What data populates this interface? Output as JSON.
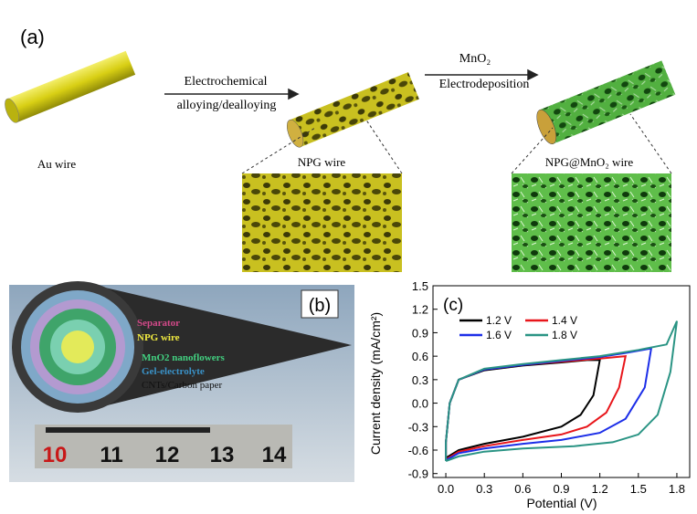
{
  "panel_a": {
    "label": "(a)",
    "arrow_1": [
      "Electrochemical",
      "alloying/dealloying"
    ],
    "arrow_2": [
      "MnO₂",
      "Electrodeposition"
    ],
    "items": [
      "Au wire",
      "NPG wire",
      "NPG@MnO₂ wire"
    ]
  },
  "panel_b": {
    "label": "(b)",
    "layers": [
      "Separator",
      "NPG wire",
      "MnO2 nanoflowers",
      "Gel-electrolyte",
      "CNTs/Carbon paper"
    ],
    "ruler": [
      "10",
      "11",
      "12",
      "13",
      "14"
    ]
  },
  "chart_data": {
    "type": "line",
    "panel_label": "(c)",
    "x_label": "Potential (V)",
    "y_label": "Current density (mA/cm²)",
    "xlim": [
      -0.1,
      1.9
    ],
    "ylim": [
      -0.95,
      1.5
    ],
    "xticks": [
      {
        "value": 0,
        "label": "0.0"
      },
      0.3,
      0.6,
      0.9,
      1.2,
      1.5,
      1.8
    ],
    "yticks": [
      -0.9,
      -0.6,
      -0.3,
      {
        "value": 0,
        "label": "0.0"
      },
      0.3,
      0.6,
      0.9,
      1.2,
      1.5
    ],
    "series": [
      {
        "name": "1.2 V",
        "color": "#000000",
        "x": [
          0,
          0.1,
          0.3,
          0.6,
          0.9,
          1.05,
          1.15,
          1.2,
          1.1,
          0.9,
          0.6,
          0.3,
          0.1,
          0.03,
          0,
          0
        ],
        "values": [
          -0.7,
          -0.6,
          -0.52,
          -0.43,
          -0.3,
          -0.15,
          0.1,
          0.55,
          0.55,
          0.52,
          0.48,
          0.42,
          0.3,
          0,
          -0.5,
          -0.7
        ]
      },
      {
        "name": "1.4 V",
        "color": "#e8161b",
        "x": [
          0,
          0.1,
          0.3,
          0.6,
          0.9,
          1.1,
          1.25,
          1.35,
          1.4,
          1.2,
          0.9,
          0.6,
          0.3,
          0.1,
          0.03,
          0,
          0
        ],
        "values": [
          -0.72,
          -0.62,
          -0.55,
          -0.47,
          -0.4,
          -0.3,
          -0.12,
          0.2,
          0.6,
          0.57,
          0.53,
          0.49,
          0.43,
          0.3,
          0,
          -0.5,
          -0.72
        ]
      },
      {
        "name": "1.6 V",
        "color": "#1c2ee8",
        "x": [
          0,
          0.1,
          0.3,
          0.6,
          0.9,
          1.2,
          1.4,
          1.55,
          1.6,
          1.4,
          1.2,
          0.9,
          0.6,
          0.3,
          0.1,
          0.03,
          0,
          0
        ],
        "values": [
          -0.73,
          -0.64,
          -0.58,
          -0.52,
          -0.47,
          -0.38,
          -0.2,
          0.2,
          0.7,
          0.64,
          0.59,
          0.54,
          0.49,
          0.43,
          0.3,
          0,
          -0.5,
          -0.73
        ]
      },
      {
        "name": "1.8 V",
        "color": "#2a9484",
        "x": [
          0,
          0.1,
          0.3,
          0.6,
          1.0,
          1.3,
          1.5,
          1.65,
          1.75,
          1.8,
          1.72,
          1.5,
          1.2,
          0.9,
          0.6,
          0.3,
          0.1,
          0.03,
          0,
          0
        ],
        "values": [
          -0.74,
          -0.68,
          -0.62,
          -0.58,
          -0.55,
          -0.5,
          -0.4,
          -0.15,
          0.4,
          1.05,
          0.75,
          0.68,
          0.6,
          0.55,
          0.5,
          0.44,
          0.3,
          0,
          -0.5,
          -0.74
        ]
      }
    ]
  }
}
